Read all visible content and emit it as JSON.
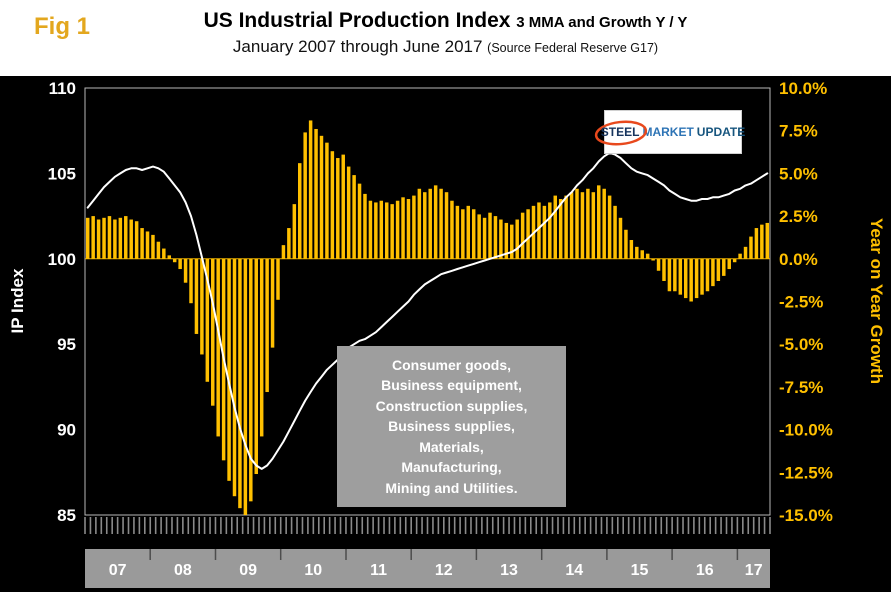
{
  "fig_label": "Fig 1",
  "header": {
    "title_main": "US Industrial Production Index",
    "title_suffix": "3 MMA and Growth Y / Y",
    "subtitle_main": "January 2007 through June 2017",
    "subtitle_source": "(Source Federal Reserve G17)"
  },
  "logo": {
    "word1": "STEEL",
    "word2": "MARKET",
    "word3": "UPDATE",
    "swoosh_color": "#E8491D"
  },
  "annotation": {
    "lines": [
      "Consumer goods,",
      "Business equipment,",
      "Construction supplies,",
      "Business supplies,",
      "Materials,",
      "Manufacturing,",
      "Mining and Utilities."
    ]
  },
  "chart_data": {
    "type": "bar",
    "title": "US Industrial Production Index 3 MMA and Growth Y / Y, January 2007 through June 2017",
    "source": "Federal Reserve G17",
    "grid": false,
    "legend": "none",
    "left_axis": {
      "label": "IP Index",
      "min": 85,
      "max": 110,
      "ticks": [
        {
          "v": 110,
          "label": "110"
        },
        {
          "v": 105,
          "label": "105"
        },
        {
          "v": 100,
          "label": "100"
        },
        {
          "v": 95,
          "label": "95"
        },
        {
          "v": 90,
          "label": "90"
        },
        {
          "v": 85,
          "label": "85"
        }
      ]
    },
    "right_axis": {
      "label": "Year on Year Growth",
      "min": -15,
      "max": 10,
      "ticks": [
        {
          "v": 10,
          "label": "10.0%"
        },
        {
          "v": 7.5,
          "label": "7.5%"
        },
        {
          "v": 5,
          "label": "5.0%"
        },
        {
          "v": 2.5,
          "label": "2.5%"
        },
        {
          "v": 0,
          "label": "0.0%"
        },
        {
          "v": -2.5,
          "label": "-2.5%"
        },
        {
          "v": -5,
          "label": "-5.0%"
        },
        {
          "v": -7.5,
          "label": "-7.5%"
        },
        {
          "v": -10,
          "label": "-10.0%"
        },
        {
          "v": -12.5,
          "label": "-12.5%"
        },
        {
          "v": -15,
          "label": "-15.0%"
        }
      ]
    },
    "x_year_labels": [
      "07",
      "08",
      "09",
      "10",
      "11",
      "12",
      "13",
      "14",
      "15",
      "16",
      "17"
    ],
    "months_per_year": [
      12,
      12,
      12,
      12,
      12,
      12,
      12,
      12,
      12,
      12,
      6
    ],
    "colors": {
      "bar": "#FFC000",
      "line": "#FFFFFF",
      "plot_bg": "#000000",
      "year_band": "#9A9A9A"
    },
    "series": [
      {
        "name": "Growth Y/Y (%)",
        "type": "bar",
        "axis": "right",
        "color": "#FFC000",
        "values": [
          2.4,
          2.5,
          2.3,
          2.4,
          2.5,
          2.3,
          2.4,
          2.5,
          2.3,
          2.2,
          1.8,
          1.6,
          1.4,
          1.0,
          0.6,
          0.2,
          -0.2,
          -0.6,
          -1.4,
          -2.6,
          -4.4,
          -5.6,
          -7.2,
          -8.6,
          -10.4,
          -11.8,
          -13.0,
          -13.9,
          -14.6,
          -15.0,
          -14.2,
          -12.6,
          -10.4,
          -7.8,
          -5.2,
          -2.4,
          0.8,
          1.8,
          3.2,
          5.6,
          7.4,
          8.1,
          7.6,
          7.2,
          6.8,
          6.3,
          5.9,
          6.1,
          5.4,
          4.9,
          4.4,
          3.8,
          3.4,
          3.3,
          3.4,
          3.3,
          3.2,
          3.4,
          3.6,
          3.5,
          3.7,
          4.1,
          3.9,
          4.1,
          4.3,
          4.1,
          3.9,
          3.4,
          3.1,
          2.9,
          3.1,
          2.9,
          2.6,
          2.4,
          2.7,
          2.5,
          2.3,
          2.1,
          2.0,
          2.3,
          2.7,
          2.9,
          3.1,
          3.3,
          3.1,
          3.3,
          3.7,
          3.5,
          3.7,
          3.9,
          4.1,
          3.9,
          4.1,
          3.9,
          4.3,
          4.1,
          3.7,
          3.1,
          2.4,
          1.7,
          1.1,
          0.7,
          0.5,
          0.3,
          -0.1,
          -0.7,
          -1.3,
          -1.9,
          -1.9,
          -2.1,
          -2.3,
          -2.5,
          -2.3,
          -2.1,
          -1.9,
          -1.6,
          -1.3,
          -1.0,
          -0.6,
          -0.2,
          0.3,
          0.7,
          1.3,
          1.8,
          2.0,
          2.1
        ]
      },
      {
        "name": "IP Index 3 MMA",
        "type": "line",
        "axis": "left",
        "color": "#FFFFFF",
        "values": [
          103.0,
          103.4,
          103.8,
          104.2,
          104.5,
          104.8,
          105.0,
          105.2,
          105.3,
          105.3,
          105.2,
          105.3,
          105.4,
          105.3,
          105.1,
          104.7,
          104.3,
          103.9,
          103.3,
          102.5,
          101.4,
          100.1,
          98.8,
          97.4,
          95.8,
          94.2,
          92.7,
          91.3,
          90.1,
          89.1,
          88.3,
          87.9,
          87.7,
          87.9,
          88.3,
          88.8,
          89.3,
          89.9,
          90.5,
          91.1,
          91.7,
          92.2,
          92.7,
          93.1,
          93.5,
          93.8,
          94.1,
          94.5,
          94.8,
          95.0,
          95.2,
          95.3,
          95.5,
          95.7,
          96.0,
          96.3,
          96.6,
          96.9,
          97.2,
          97.5,
          97.9,
          98.2,
          98.5,
          98.7,
          98.9,
          99.1,
          99.2,
          99.3,
          99.4,
          99.5,
          99.6,
          99.7,
          99.8,
          99.9,
          100.0,
          100.1,
          100.2,
          100.3,
          100.4,
          100.6,
          100.9,
          101.2,
          101.5,
          101.8,
          102.1,
          102.4,
          102.8,
          103.2,
          103.6,
          103.9,
          104.3,
          104.6,
          105.0,
          105.3,
          105.7,
          106.0,
          106.2,
          106.1,
          105.9,
          105.6,
          105.3,
          105.1,
          105.0,
          104.9,
          104.7,
          104.5,
          104.3,
          104.0,
          103.8,
          103.6,
          103.5,
          103.4,
          103.4,
          103.5,
          103.5,
          103.6,
          103.6,
          103.7,
          103.8,
          104.0,
          104.1,
          104.3,
          104.4,
          104.6,
          104.8,
          105.0
        ]
      }
    ]
  }
}
